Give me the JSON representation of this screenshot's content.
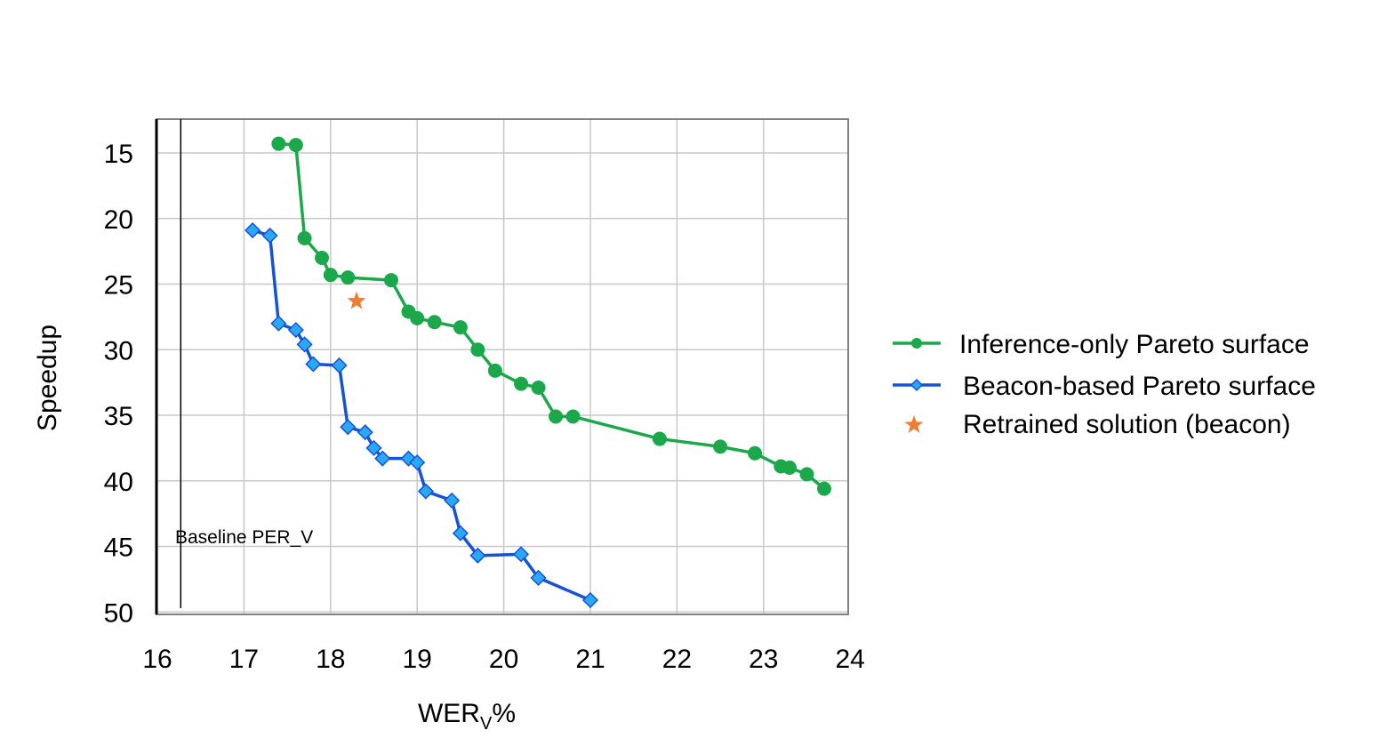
{
  "chart_data": {
    "type": "line",
    "title": "",
    "xlabel": "WER",
    "xlabel_subscript": "V",
    "xlabel_suffix": "%",
    "ylabel": "Speedup",
    "xlim": [
      16,
      24
    ],
    "ylim": [
      50,
      13
    ],
    "y_inverted": true,
    "x_ticks": [
      16,
      17,
      18,
      19,
      20,
      21,
      22,
      23,
      24
    ],
    "y_ticks": [
      15,
      20,
      25,
      30,
      35,
      40,
      45,
      50
    ],
    "grid": true,
    "legend_position": "right",
    "colors": {
      "inference": "#1aa84a",
      "beacon_line": "#1652d6",
      "beacon_marker": "#29a8f5",
      "star": "#ed7d31"
    },
    "series": [
      {
        "name": "Inference-only Pareto surface",
        "marker": "circle",
        "x": [
          17.4,
          17.6,
          17.7,
          17.9,
          18.0,
          18.2,
          18.7,
          18.9,
          19.0,
          19.2,
          19.5,
          19.7,
          19.9,
          20.2,
          20.4,
          20.6,
          20.8,
          21.8,
          22.5,
          22.9,
          23.2,
          23.3,
          23.5,
          23.7
        ],
        "y": [
          14.3,
          14.4,
          21.5,
          23.0,
          24.3,
          24.5,
          24.7,
          27.1,
          27.6,
          27.9,
          28.3,
          30.0,
          31.6,
          32.6,
          32.9,
          35.1,
          35.1,
          36.8,
          37.4,
          37.9,
          38.9,
          39.0,
          39.5,
          40.6
        ]
      },
      {
        "name": "Beacon-based Pareto surface",
        "marker": "diamond",
        "x": [
          17.1,
          17.3,
          17.4,
          17.6,
          17.7,
          17.8,
          18.1,
          18.2,
          18.4,
          18.5,
          18.6,
          18.9,
          19.0,
          19.1,
          19.4,
          19.5,
          19.7,
          20.2,
          20.4,
          21.0
        ],
        "y": [
          20.9,
          21.3,
          28.0,
          28.5,
          29.6,
          31.1,
          31.2,
          35.9,
          36.3,
          37.5,
          38.3,
          38.3,
          38.6,
          40.8,
          41.5,
          44.0,
          45.7,
          45.6,
          47.4,
          49.1
        ]
      },
      {
        "name": "Retrained solution (beacon)",
        "marker": "star",
        "x": [
          18.3
        ],
        "y": [
          26.3
        ]
      }
    ],
    "annotations": [
      {
        "text": "Baseline PER_V",
        "x": 16.27
      }
    ]
  }
}
